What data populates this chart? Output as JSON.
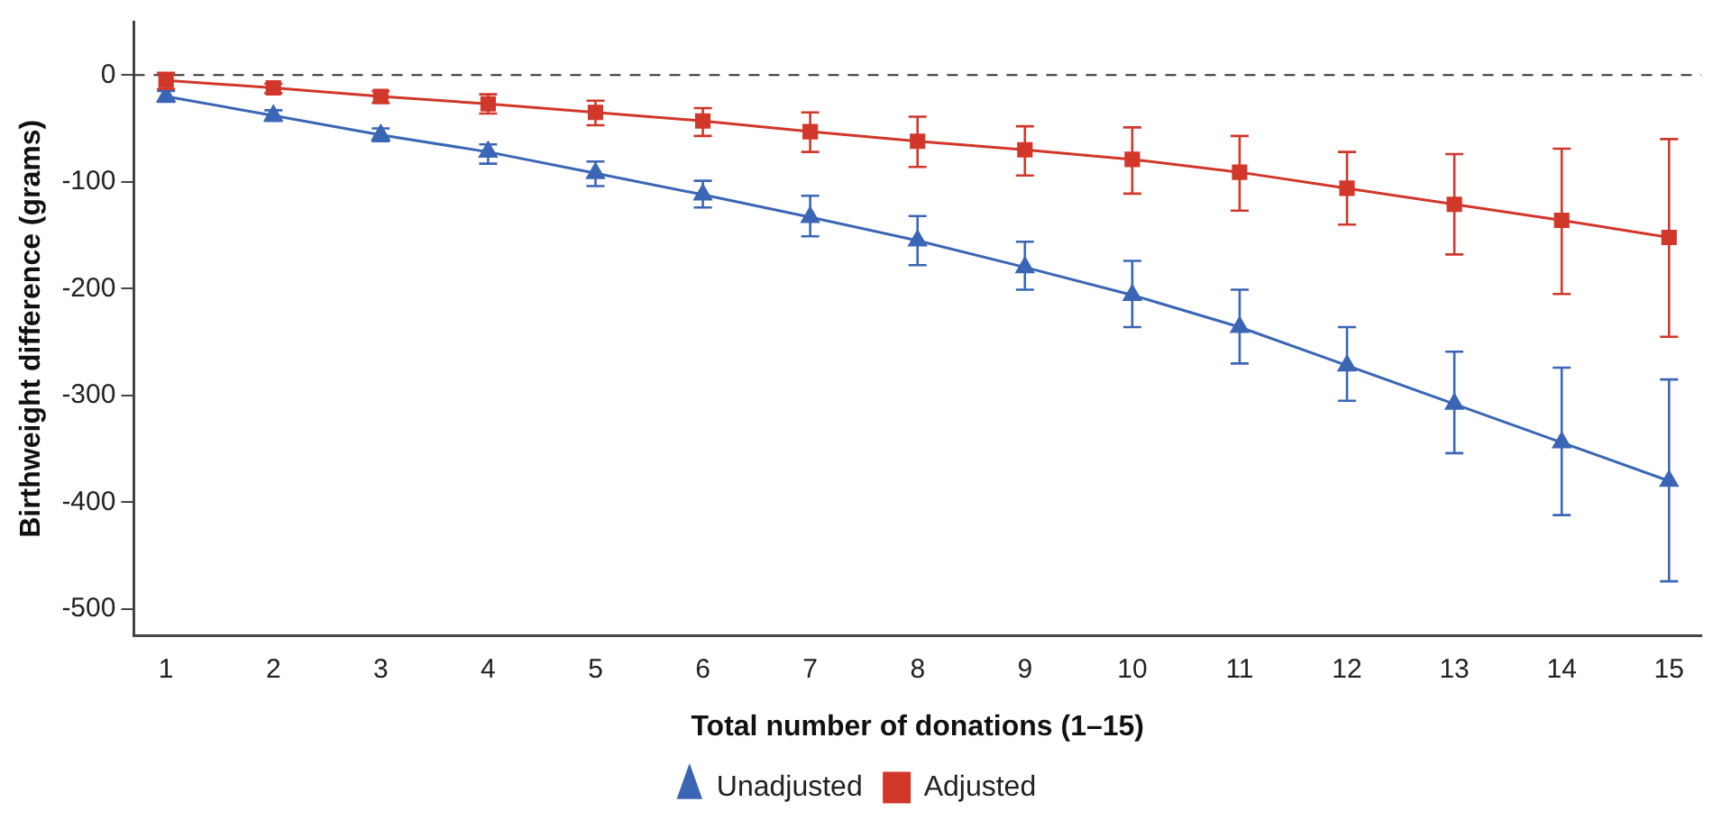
{
  "chart_data": {
    "type": "line",
    "xlabel": "Total number of donations (1–15)",
    "ylabel": "Birthweight difference (grams)",
    "x": [
      1,
      2,
      3,
      4,
      5,
      6,
      7,
      8,
      9,
      10,
      11,
      12,
      13,
      14,
      15
    ],
    "xlim": [
      0.7,
      15.3
    ],
    "xticks": [
      1,
      2,
      3,
      4,
      5,
      6,
      7,
      8,
      9,
      10,
      11,
      12,
      13,
      14,
      15
    ],
    "ylim": [
      -525,
      50
    ],
    "yticks": [
      0,
      -100,
      -200,
      -300,
      -400,
      -500
    ],
    "grid": false,
    "legend": "bottom",
    "ref_lines": [
      {
        "axis": "y",
        "value": 0,
        "line_style": "dashed",
        "color": "#333333"
      }
    ],
    "series": [
      {
        "name": "Unadjusted",
        "color": "#3a66b5",
        "marker": "triangle",
        "values": [
          -20,
          -38,
          -56,
          -72,
          -92,
          -112,
          -133,
          -155,
          -180,
          -206,
          -236,
          -272,
          -308,
          -344,
          -380
        ],
        "errors": [
          [
            -25,
            -15
          ],
          [
            -43,
            -33
          ],
          [
            -62,
            -50
          ],
          [
            -83,
            -65
          ],
          [
            -104,
            -81
          ],
          [
            -124,
            -99
          ],
          [
            -151,
            -113
          ],
          [
            -178,
            -132
          ],
          [
            -201,
            -156
          ],
          [
            -236,
            -174
          ],
          [
            -270,
            -201
          ],
          [
            -305,
            -236
          ],
          [
            -354,
            -259
          ],
          [
            -412,
            -274
          ],
          [
            -474,
            -285
          ]
        ]
      },
      {
        "name": "Adjusted",
        "color": "#d1372a",
        "marker": "square",
        "values": [
          -5,
          -12,
          -20,
          -27,
          -35,
          -43,
          -53,
          -62,
          -70,
          -79,
          -91,
          -106,
          -121,
          -136,
          -152
        ],
        "errors": [
          [
            -13,
            2
          ],
          [
            -17,
            -8
          ],
          [
            -26,
            -15
          ],
          [
            -36,
            -18
          ],
          [
            -47,
            -24
          ],
          [
            -57,
            -31
          ],
          [
            -72,
            -35
          ],
          [
            -86,
            -39
          ],
          [
            -94,
            -48
          ],
          [
            -111,
            -49
          ],
          [
            -127,
            -57
          ],
          [
            -140,
            -72
          ],
          [
            -168,
            -74
          ],
          [
            -205,
            -69
          ],
          [
            -245,
            -60
          ]
        ]
      }
    ]
  }
}
